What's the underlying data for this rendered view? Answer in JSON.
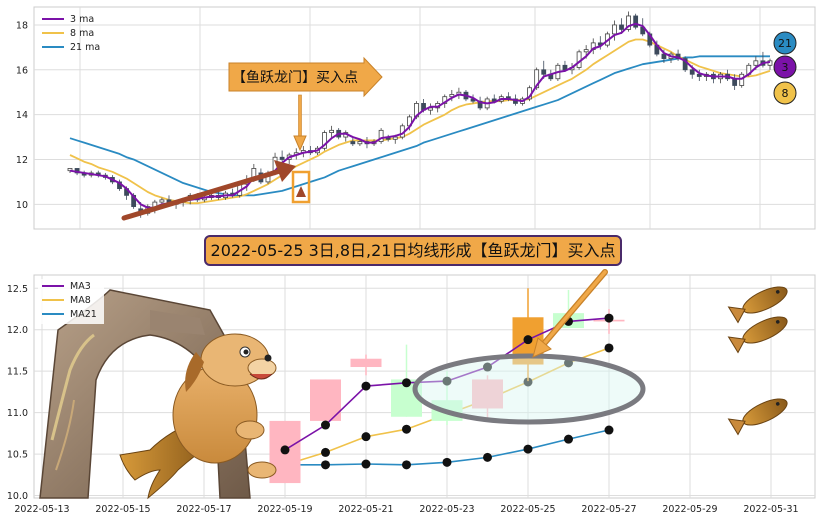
{
  "colors": {
    "up_fill": "#ffffff",
    "up_stroke": "#444444",
    "down_fill": "#3d4a5c",
    "ma3": "#7b12a8",
    "ma8": "#f0c24a",
    "ma21": "#2a8bc2",
    "pink_up": "#ffb6c1",
    "green_down": "#c7ffcf",
    "highlight": "#f0a030",
    "grid": "#dddddd",
    "panel_bg": "#ffffff"
  },
  "top_legend": [
    "3 ma",
    "8 ma",
    "21 ma"
  ],
  "bottom_legend": [
    "MA3",
    "MA8",
    "MA21"
  ],
  "callout_label": "【鱼跃龙门】买入点",
  "banner_text": "2022-05-25 3日,8日,21日均线形成【鱼跃龙门】买入点",
  "badges": [
    {
      "text": "21",
      "color": "#2a8bc2"
    },
    {
      "text": "3",
      "color": "#7b12a8"
    },
    {
      "text": "8",
      "color": "#f0c24a"
    }
  ],
  "chart_data": [
    {
      "type": "candlestick",
      "title": "",
      "ylim": [
        8.9,
        18.8
      ],
      "y_ticks": [
        10,
        12,
        14,
        16,
        18
      ],
      "grid": true,
      "legend_position": "top-left",
      "candles": [
        [
          11.5,
          11.6,
          11.4,
          11.6
        ],
        [
          11.6,
          11.6,
          11.3,
          11.4
        ],
        [
          11.4,
          11.5,
          11.2,
          11.3
        ],
        [
          11.3,
          11.5,
          11.2,
          11.4
        ],
        [
          11.4,
          11.5,
          11.2,
          11.3
        ],
        [
          11.3,
          11.4,
          11.1,
          11.2
        ],
        [
          11.2,
          11.3,
          10.9,
          11.0
        ],
        [
          11.0,
          11.1,
          10.6,
          10.7
        ],
        [
          10.7,
          10.8,
          10.2,
          10.4
        ],
        [
          10.4,
          10.5,
          9.8,
          9.9
        ],
        [
          9.8,
          10.1,
          9.4,
          9.6
        ],
        [
          9.6,
          10.0,
          9.5,
          9.9
        ],
        [
          9.8,
          10.2,
          9.6,
          10.1
        ],
        [
          10.1,
          10.3,
          9.9,
          10.2
        ],
        [
          10.2,
          10.4,
          9.9,
          10.0
        ],
        [
          10.0,
          10.2,
          9.8,
          10.1
        ],
        [
          10.1,
          10.3,
          9.9,
          10.2
        ],
        [
          10.2,
          10.5,
          10.0,
          10.4
        ],
        [
          10.4,
          10.5,
          10.1,
          10.2
        ],
        [
          10.2,
          10.4,
          10.1,
          10.3
        ],
        [
          10.3,
          10.5,
          10.2,
          10.4
        ],
        [
          10.4,
          10.6,
          10.2,
          10.3
        ],
        [
          10.3,
          10.6,
          10.2,
          10.5
        ],
        [
          10.5,
          10.7,
          10.3,
          10.4
        ],
        [
          10.4,
          11.0,
          10.3,
          10.9
        ],
        [
          10.9,
          11.3,
          10.6,
          11.1
        ],
        [
          11.1,
          11.8,
          11.0,
          11.6
        ],
        [
          11.4,
          11.6,
          10.9,
          11.0
        ],
        [
          11.0,
          11.5,
          10.9,
          11.4
        ],
        [
          11.4,
          12.3,
          11.3,
          12.1
        ],
        [
          12.1,
          12.4,
          11.9,
          12.0
        ],
        [
          12.0,
          12.3,
          11.8,
          12.2
        ],
        [
          12.2,
          12.5,
          12.0,
          12.3
        ],
        [
          12.3,
          12.6,
          12.1,
          12.4
        ],
        [
          12.4,
          12.6,
          12.2,
          12.3
        ],
        [
          12.3,
          12.6,
          12.2,
          12.5
        ],
        [
          12.5,
          13.3,
          12.4,
          13.2
        ],
        [
          13.2,
          13.5,
          12.9,
          13.3
        ],
        [
          13.3,
          13.4,
          12.9,
          13.0
        ],
        [
          13.0,
          13.3,
          12.8,
          13.2
        ],
        [
          12.8,
          13.0,
          12.6,
          12.7
        ],
        [
          12.7,
          12.9,
          12.6,
          12.8
        ],
        [
          12.8,
          13.0,
          12.5,
          12.7
        ],
        [
          12.7,
          12.9,
          12.6,
          12.8
        ],
        [
          12.8,
          13.4,
          12.7,
          13.3
        ],
        [
          13.0,
          13.1,
          12.8,
          12.9
        ],
        [
          12.9,
          13.1,
          12.7,
          13.0
        ],
        [
          13.0,
          13.6,
          12.9,
          13.5
        ],
        [
          13.5,
          14.0,
          13.3,
          13.9
        ],
        [
          13.9,
          14.6,
          13.8,
          14.5
        ],
        [
          14.5,
          14.7,
          14.1,
          14.2
        ],
        [
          14.2,
          14.5,
          14.0,
          14.3
        ],
        [
          14.3,
          14.6,
          14.1,
          14.5
        ],
        [
          14.5,
          14.9,
          14.3,
          14.8
        ],
        [
          14.8,
          15.1,
          14.6,
          14.9
        ],
        [
          14.9,
          15.2,
          14.7,
          15.0
        ],
        [
          15.0,
          15.1,
          14.6,
          14.7
        ],
        [
          14.7,
          14.9,
          14.5,
          14.6
        ],
        [
          14.6,
          14.8,
          14.2,
          14.3
        ],
        [
          14.3,
          14.8,
          14.2,
          14.7
        ],
        [
          14.7,
          14.9,
          14.5,
          14.6
        ],
        [
          14.6,
          14.9,
          14.5,
          14.8
        ],
        [
          14.8,
          15.0,
          14.6,
          14.7
        ],
        [
          14.7,
          14.9,
          14.4,
          14.5
        ],
        [
          14.5,
          14.8,
          14.4,
          14.7
        ],
        [
          14.7,
          15.3,
          14.6,
          15.2
        ],
        [
          15.2,
          16.1,
          15.1,
          16.0
        ],
        [
          16.0,
          16.4,
          15.6,
          15.8
        ],
        [
          15.8,
          16.0,
          15.5,
          15.6
        ],
        [
          15.6,
          16.3,
          15.5,
          16.2
        ],
        [
          16.2,
          16.4,
          15.9,
          16.0
        ],
        [
          16.0,
          16.3,
          15.8,
          16.1
        ],
        [
          16.1,
          16.9,
          16.0,
          16.8
        ],
        [
          16.8,
          17.1,
          16.5,
          16.9
        ],
        [
          16.9,
          17.4,
          16.7,
          17.2
        ],
        [
          17.2,
          17.5,
          16.9,
          17.1
        ],
        [
          17.1,
          17.7,
          17.0,
          17.6
        ],
        [
          17.6,
          18.2,
          17.3,
          18.0
        ],
        [
          18.0,
          18.3,
          17.6,
          17.8
        ],
        [
          17.8,
          18.6,
          17.7,
          18.4
        ],
        [
          18.4,
          18.5,
          17.8,
          17.9
        ],
        [
          17.9,
          18.3,
          17.5,
          17.6
        ],
        [
          17.6,
          17.7,
          17.0,
          17.1
        ],
        [
          17.1,
          17.3,
          16.6,
          16.7
        ],
        [
          16.7,
          16.9,
          16.3,
          16.5
        ],
        [
          16.5,
          16.8,
          16.3,
          16.7
        ],
        [
          16.7,
          16.9,
          16.4,
          16.5
        ],
        [
          16.5,
          16.6,
          15.9,
          16.0
        ],
        [
          16.0,
          16.2,
          15.6,
          15.8
        ],
        [
          15.8,
          16.0,
          15.5,
          15.7
        ],
        [
          15.7,
          15.9,
          15.5,
          15.8
        ],
        [
          15.8,
          15.9,
          15.4,
          15.6
        ],
        [
          15.6,
          15.9,
          15.4,
          15.8
        ],
        [
          15.8,
          16.0,
          15.5,
          15.6
        ],
        [
          15.6,
          15.8,
          15.1,
          15.3
        ],
        [
          15.3,
          15.9,
          15.2,
          15.8
        ],
        [
          15.8,
          16.3,
          15.7,
          16.2
        ],
        [
          16.2,
          16.6,
          16.0,
          16.4
        ],
        [
          16.4,
          16.8,
          16.1,
          16.2
        ],
        [
          16.2,
          16.5,
          16.0,
          16.4
        ]
      ],
      "ma3": [
        11.5,
        11.45,
        11.4,
        11.35,
        11.3,
        11.25,
        11.1,
        10.95,
        10.7,
        10.35,
        10.0,
        9.85,
        9.85,
        10.0,
        10.05,
        10.1,
        10.15,
        10.2,
        10.25,
        10.3,
        10.35,
        10.35,
        10.4,
        10.4,
        10.6,
        10.8,
        11.2,
        11.25,
        11.35,
        11.5,
        11.85,
        12.1,
        12.2,
        12.3,
        12.35,
        12.4,
        12.65,
        12.95,
        13.15,
        13.15,
        13.0,
        12.9,
        12.75,
        12.75,
        12.95,
        13.0,
        13.05,
        13.15,
        13.45,
        13.95,
        14.2,
        14.35,
        14.35,
        14.55,
        14.75,
        14.9,
        14.85,
        14.75,
        14.55,
        14.5,
        14.55,
        14.7,
        14.7,
        14.65,
        14.6,
        14.8,
        15.3,
        15.7,
        15.8,
        15.9,
        15.95,
        16.1,
        16.35,
        16.6,
        16.95,
        17.05,
        17.3,
        17.55,
        17.65,
        17.95,
        18.05,
        17.95,
        17.55,
        17.1,
        16.75,
        16.6,
        16.55,
        16.4,
        16.1,
        15.85,
        15.75,
        15.7,
        15.7,
        15.7,
        15.6,
        15.6,
        15.8,
        16.1,
        16.3,
        16.35
      ],
      "ma8": [
        12.2,
        12.05,
        11.9,
        11.8,
        11.65,
        11.55,
        11.45,
        11.3,
        11.15,
        10.95,
        10.75,
        10.55,
        10.4,
        10.3,
        10.2,
        10.15,
        10.1,
        10.05,
        10.05,
        10.1,
        10.15,
        10.2,
        10.25,
        10.3,
        10.35,
        10.45,
        10.6,
        10.75,
        10.9,
        11.1,
        11.3,
        11.5,
        11.7,
        11.85,
        12.0,
        12.15,
        12.35,
        12.5,
        12.65,
        12.75,
        12.85,
        12.85,
        12.85,
        12.85,
        12.85,
        12.9,
        12.95,
        13.0,
        13.15,
        13.35,
        13.55,
        13.7,
        13.85,
        14.0,
        14.2,
        14.35,
        14.45,
        14.5,
        14.55,
        14.6,
        14.6,
        14.6,
        14.65,
        14.65,
        14.65,
        14.7,
        14.85,
        15.0,
        15.15,
        15.3,
        15.45,
        15.6,
        15.8,
        16.0,
        16.25,
        16.45,
        16.65,
        16.85,
        17.05,
        17.25,
        17.35,
        17.35,
        17.25,
        17.1,
        16.95,
        16.8,
        16.6,
        16.45,
        16.3,
        16.15,
        16.05,
        15.95,
        15.85,
        15.8,
        15.75,
        15.7,
        15.7,
        15.75,
        15.85,
        15.95
      ],
      "ma21": [
        12.95,
        12.85,
        12.75,
        12.65,
        12.55,
        12.45,
        12.35,
        12.25,
        12.1,
        12.0,
        11.85,
        11.7,
        11.55,
        11.4,
        11.25,
        11.1,
        10.95,
        10.85,
        10.75,
        10.65,
        10.55,
        10.5,
        10.45,
        10.4,
        10.4,
        10.4,
        10.4,
        10.45,
        10.5,
        10.55,
        10.6,
        10.7,
        10.8,
        10.9,
        11.0,
        11.1,
        11.2,
        11.35,
        11.5,
        11.6,
        11.7,
        11.8,
        11.9,
        12.0,
        12.1,
        12.2,
        12.3,
        12.4,
        12.5,
        12.6,
        12.75,
        12.85,
        12.95,
        13.05,
        13.15,
        13.25,
        13.35,
        13.45,
        13.55,
        13.65,
        13.75,
        13.85,
        13.95,
        14.05,
        14.15,
        14.25,
        14.35,
        14.45,
        14.55,
        14.65,
        14.8,
        14.95,
        15.1,
        15.25,
        15.4,
        15.55,
        15.7,
        15.85,
        15.95,
        16.05,
        16.15,
        16.25,
        16.3,
        16.35,
        16.4,
        16.45,
        16.5,
        16.55,
        16.55,
        16.6,
        16.6,
        16.6,
        16.6,
        16.6,
        16.6,
        16.6,
        16.6,
        16.6,
        16.6,
        16.6
      ]
    },
    {
      "type": "candlestick",
      "title": "",
      "ylim": [
        9.97,
        12.66
      ],
      "y_ticks": [
        10.0,
        10.5,
        11.0,
        11.5,
        12.0,
        12.5
      ],
      "x_ticks": [
        "2022-05-13",
        "2022-05-15",
        "2022-05-17",
        "2022-05-19",
        "2022-05-21",
        "2022-05-23",
        "2022-05-25",
        "2022-05-27",
        "2022-05-29",
        "2022-05-31"
      ],
      "x_tick_positions": [
        0,
        2,
        4,
        6,
        8,
        10,
        12,
        14,
        16,
        18
      ],
      "grid": true,
      "legend_position": "top-left",
      "candles": [
        {
          "x": 6.0,
          "open": 10.15,
          "high": 10.9,
          "low": 10.15,
          "close": 10.9
        },
        {
          "x": 7.0,
          "open": 10.9,
          "high": 11.4,
          "low": 10.9,
          "close": 11.4
        },
        {
          "x": 8.0,
          "open": 11.55,
          "high": 11.7,
          "low": 11.45,
          "close": 11.65
        },
        {
          "x": 9.0,
          "open": 11.4,
          "high": 11.82,
          "low": 10.95,
          "close": 10.95
        },
        {
          "x": 10.0,
          "open": 11.15,
          "high": 11.5,
          "low": 10.85,
          "close": 10.9
        },
        {
          "x": 11.0,
          "open": 11.05,
          "high": 11.45,
          "low": 10.92,
          "close": 11.4
        },
        {
          "x": 12.0,
          "open": 11.58,
          "high": 12.5,
          "low": 11.38,
          "close": 12.15
        },
        {
          "x": 13.0,
          "open": 12.2,
          "high": 12.48,
          "low": 12.02,
          "close": 12.02
        },
        {
          "x": 14.0,
          "open": 12.1,
          "high": 12.25,
          "low": 11.95,
          "close": 12.12
        }
      ],
      "ma3": {
        "x": [
          6,
          7,
          8,
          9,
          10,
          11,
          12,
          13,
          14
        ],
        "y": [
          10.55,
          10.85,
          11.32,
          11.36,
          11.38,
          11.55,
          11.88,
          12.1,
          12.14
        ]
      },
      "ma8": {
        "x": [
          6,
          7,
          8,
          9,
          10,
          11,
          12,
          13,
          14
        ],
        "y": [
          10.37,
          10.52,
          10.71,
          10.8,
          10.98,
          11.16,
          11.37,
          11.6,
          11.78
        ]
      },
      "ma21": {
        "x": [
          6,
          7,
          8,
          9,
          10,
          11,
          12,
          13,
          14
        ],
        "y": [
          10.37,
          10.37,
          10.38,
          10.37,
          10.4,
          10.46,
          10.56,
          10.68,
          10.79
        ]
      }
    }
  ]
}
